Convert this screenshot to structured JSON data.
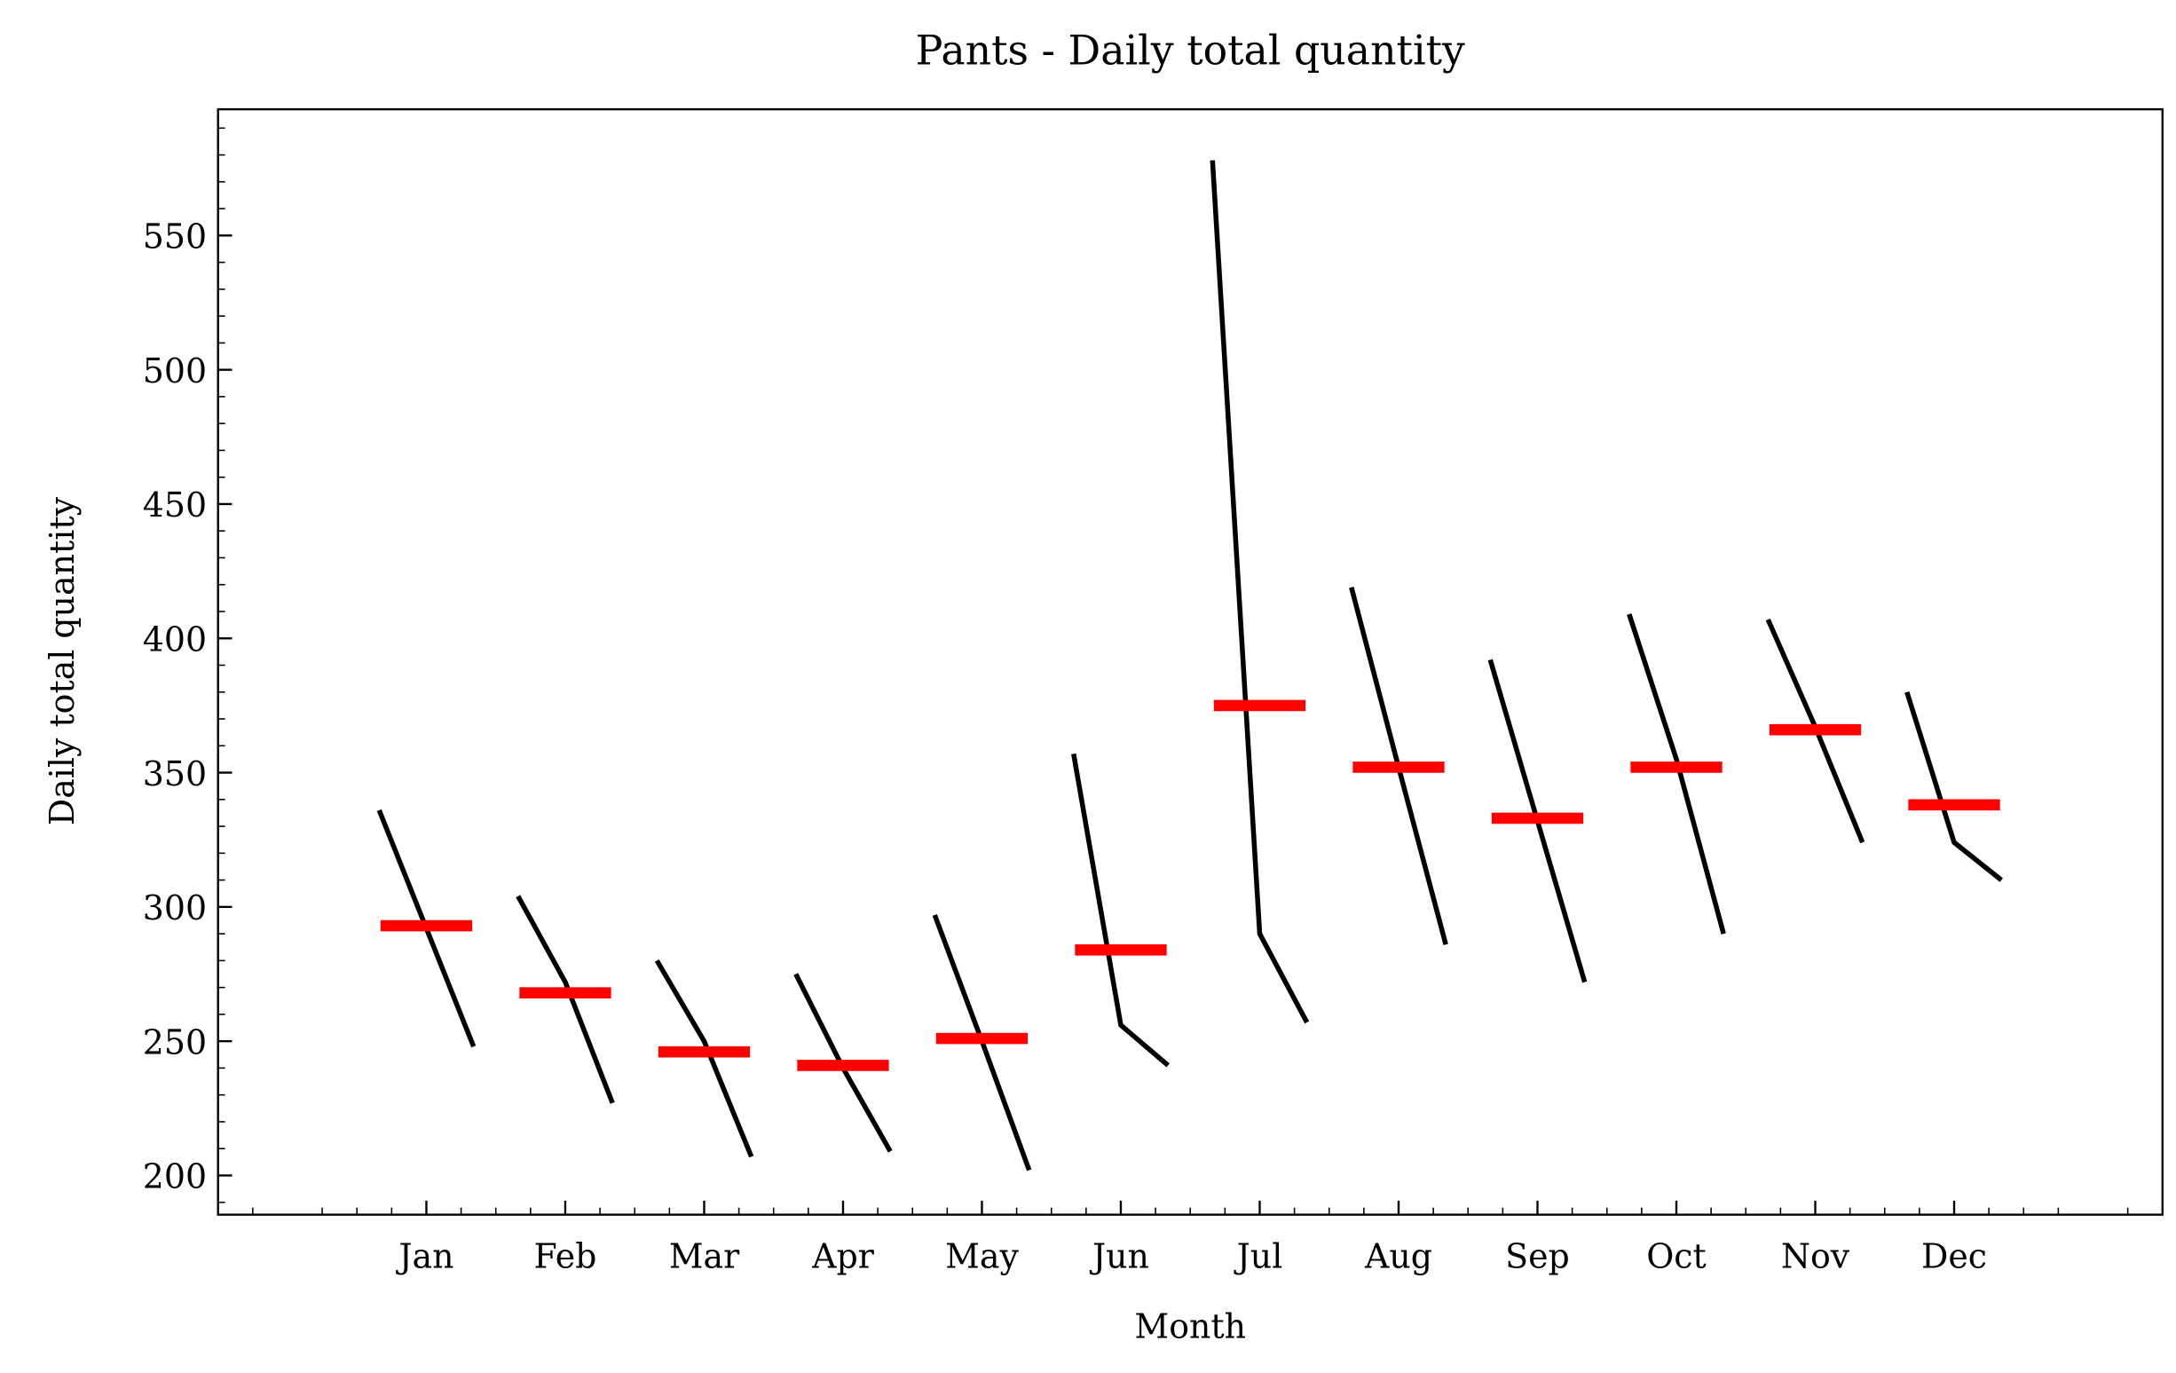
{
  "chart_data": {
    "type": "monthplot",
    "title": "Pants - Daily total quantity",
    "x_label": "Month",
    "y_label": "Daily total quantity",
    "categories": [
      "Jan",
      "Feb",
      "Mar",
      "Apr",
      "May",
      "Jun",
      "Jul",
      "Aug",
      "Sep",
      "Oct",
      "Nov",
      "Dec"
    ],
    "subseries": [
      {
        "values": [
          336,
          292,
          248
        ]
      },
      {
        "values": [
          304,
          272,
          227
        ]
      },
      {
        "values": [
          280,
          250,
          207
        ]
      },
      {
        "values": [
          275,
          240,
          209
        ]
      },
      {
        "values": [
          297,
          250,
          202
        ]
      },
      {
        "values": [
          357,
          256,
          241
        ]
      },
      {
        "values": [
          578,
          290,
          257
        ]
      },
      {
        "values": [
          419,
          352,
          286
        ]
      },
      {
        "values": [
          392,
          332,
          272
        ]
      },
      {
        "values": [
          409,
          355,
          290
        ]
      },
      {
        "values": [
          407,
          367,
          324
        ]
      },
      {
        "values": [
          380,
          324,
          310
        ]
      }
    ],
    "means": [
      293,
      268,
      246,
      241,
      251,
      284,
      375,
      352,
      333,
      352,
      366,
      338
    ],
    "line_color": "#000000",
    "mean_color": "#ff0000",
    "ylim": [
      185.4,
      597
    ],
    "yticks": [
      200,
      250,
      300,
      350,
      400,
      450,
      500,
      550
    ]
  }
}
